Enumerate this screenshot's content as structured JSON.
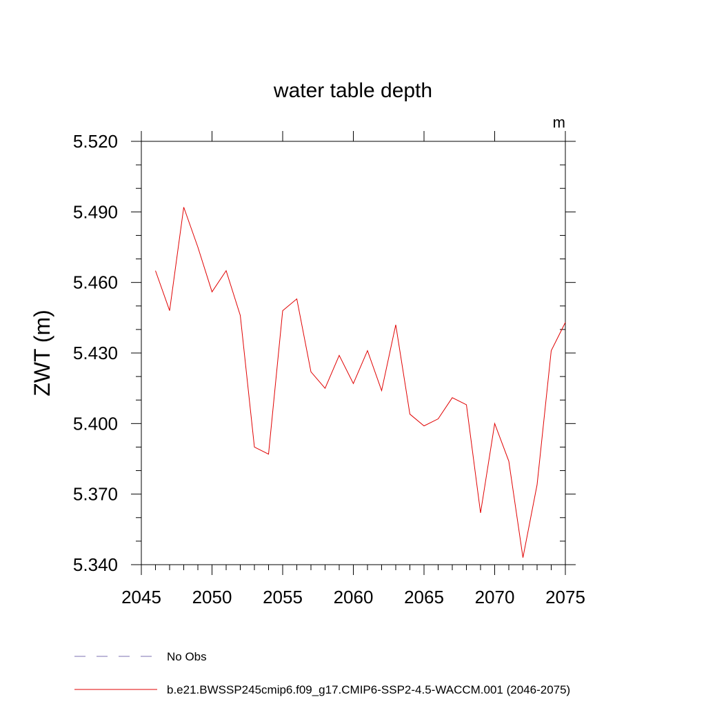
{
  "chart_data": {
    "type": "line",
    "title": "water table depth",
    "units": "m",
    "xlabel": "",
    "ylabel": "ZWT  (m)",
    "xlim": [
      2045,
      2075
    ],
    "ylim": [
      5.34,
      5.52
    ],
    "xticks": [
      2045,
      2050,
      2055,
      2060,
      2065,
      2070,
      2075
    ],
    "xtick_labels": [
      "2045",
      "2050",
      "2055",
      "2060",
      "2065",
      "2070",
      "2075"
    ],
    "yticks": [
      5.34,
      5.37,
      5.4,
      5.43,
      5.46,
      5.49,
      5.52
    ],
    "ytick_labels": [
      "5.340",
      "5.370",
      "5.400",
      "5.430",
      "5.460",
      "5.490",
      "5.520"
    ],
    "grid": false,
    "legend_position": "bottom",
    "series": [
      {
        "name": "b.e21.BWSSP245cmip6.f09_g17.CMIP6-SSP2-4.5-WACCM.001 (2046-2075)",
        "color": "#e00000",
        "style": "solid",
        "x": [
          2046,
          2047,
          2048,
          2049,
          2050,
          2051,
          2052,
          2053,
          2054,
          2055,
          2056,
          2057,
          2058,
          2059,
          2060,
          2061,
          2062,
          2063,
          2064,
          2065,
          2066,
          2067,
          2068,
          2069,
          2070,
          2071,
          2072,
          2073,
          2074,
          2075
        ],
        "y": [
          5.465,
          5.448,
          5.492,
          5.475,
          5.456,
          5.465,
          5.446,
          5.39,
          5.387,
          5.448,
          5.453,
          5.422,
          5.415,
          5.429,
          5.417,
          5.431,
          5.414,
          5.442,
          5.404,
          5.399,
          5.402,
          5.411,
          5.408,
          5.362,
          5.4,
          5.384,
          5.343,
          5.374,
          5.431,
          5.443
        ]
      }
    ],
    "legend": [
      {
        "label": "No Obs",
        "color": "#7b6fb0",
        "style": "dashed"
      },
      {
        "label": "b.e21.BWSSP245cmip6.f09_g17.CMIP6-SSP2-4.5-WACCM.001 (2046-2075)",
        "color": "#e00000",
        "style": "solid"
      }
    ]
  }
}
